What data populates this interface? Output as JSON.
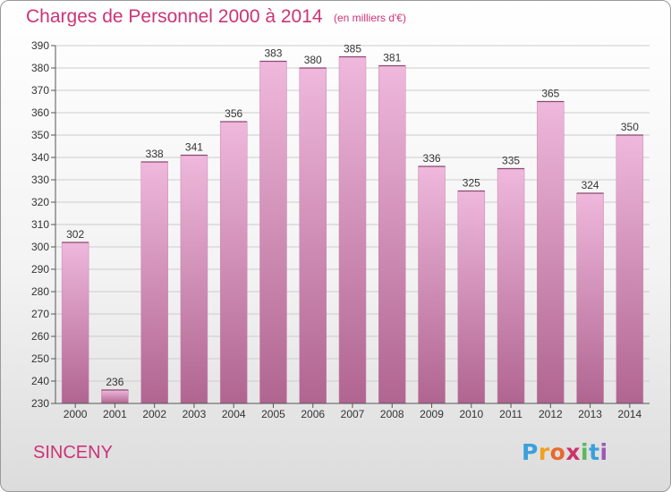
{
  "title": "Charges de Personnel 2000 à 2014",
  "subtitle": "(en milliers d'€)",
  "commune": "SINCENY",
  "logo": {
    "text": "Proxiti",
    "letters": [
      "P",
      "r",
      "o",
      "x",
      "i",
      "t",
      "i"
    ]
  },
  "colors": {
    "title": "#cc3377",
    "bar_light": "#efb8dc",
    "bar_dark": "#b06590",
    "grid": "#cccccc"
  },
  "chart_data": {
    "type": "bar",
    "title": "Charges de Personnel 2000 à 2014",
    "subtitle": "(en milliers d'€)",
    "categories": [
      "2000",
      "2001",
      "2002",
      "2003",
      "2004",
      "2005",
      "2006",
      "2007",
      "2008",
      "2009",
      "2010",
      "2011",
      "2012",
      "2013",
      "2014"
    ],
    "values": [
      302,
      236,
      338,
      341,
      356,
      383,
      380,
      385,
      381,
      336,
      325,
      335,
      365,
      324,
      350
    ],
    "ylim": [
      230,
      390
    ],
    "yticks": [
      230,
      240,
      250,
      260,
      270,
      280,
      290,
      300,
      310,
      320,
      330,
      340,
      350,
      360,
      370,
      380,
      390
    ],
    "grid": true,
    "data_labels": true
  }
}
